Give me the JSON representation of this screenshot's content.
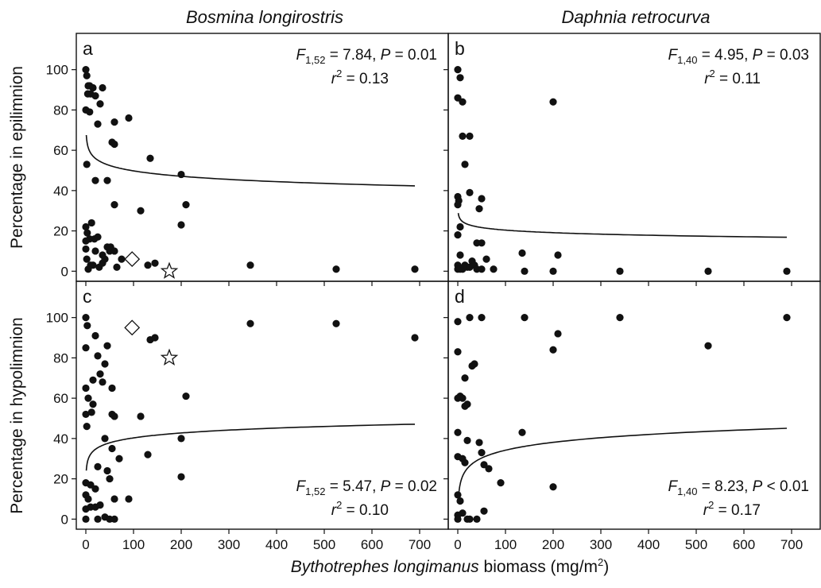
{
  "figure": {
    "column_titles": [
      "Bosmina longirostris",
      "Daphnia retrocurva"
    ],
    "xlabel_italic": "Bythotrephes longimanus",
    "xlabel_rest": " biomass (mg/m",
    "xlabel_sup": "2",
    "xlabel_close": ")",
    "ylabels": [
      "Percentage in epilimnion",
      "Percentage in hypolimnion"
    ]
  },
  "chart_data": [
    {
      "type": "scatter",
      "panel_label": "a",
      "ylabel": "Percentage in epilimnion",
      "xlim": [
        -20,
        760
      ],
      "ylim": [
        -5,
        118
      ],
      "xticks": [
        0,
        100,
        200,
        300,
        400,
        500,
        600,
        700
      ],
      "yticks": [
        0,
        20,
        40,
        60,
        80,
        100
      ],
      "stats": {
        "F_sub": "1,52",
        "F": "7.84",
        "P_op": "=",
        "P": "0.01",
        "r2": "0.13"
      },
      "points": [
        [
          0,
          100
        ],
        [
          2,
          97
        ],
        [
          5,
          92
        ],
        [
          8,
          92
        ],
        [
          15,
          91
        ],
        [
          4,
          88
        ],
        [
          10,
          88
        ],
        [
          20,
          87
        ],
        [
          35,
          91
        ],
        [
          30,
          83
        ],
        [
          0,
          80
        ],
        [
          8,
          79
        ],
        [
          25,
          73
        ],
        [
          60,
          74
        ],
        [
          90,
          76
        ],
        [
          55,
          64
        ],
        [
          60,
          63
        ],
        [
          135,
          56
        ],
        [
          200,
          48
        ],
        [
          2,
          53
        ],
        [
          20,
          45
        ],
        [
          45,
          45
        ],
        [
          60,
          33
        ],
        [
          115,
          30
        ],
        [
          200,
          23
        ],
        [
          210,
          33
        ],
        [
          0,
          22
        ],
        [
          3,
          19
        ],
        [
          12,
          24
        ],
        [
          8,
          16
        ],
        [
          18,
          16
        ],
        [
          0,
          11
        ],
        [
          2,
          6
        ],
        [
          5,
          1
        ],
        [
          10,
          3
        ],
        [
          15,
          3
        ],
        [
          20,
          10
        ],
        [
          25,
          17
        ],
        [
          28,
          2
        ],
        [
          35,
          4
        ],
        [
          35,
          8
        ],
        [
          40,
          6
        ],
        [
          45,
          12
        ],
        [
          50,
          10
        ],
        [
          52,
          12
        ],
        [
          60,
          10
        ],
        [
          65,
          2
        ],
        [
          75,
          6
        ],
        [
          130,
          3
        ],
        [
          145,
          4
        ],
        [
          0,
          15
        ],
        [
          345,
          3
        ],
        [
          525,
          1
        ],
        [
          690,
          1
        ]
      ],
      "highlights": [
        {
          "shape": "diamond",
          "x": 97,
          "y": 6
        },
        {
          "shape": "star",
          "x": 175,
          "y": 0
        }
      ],
      "fit": {
        "a": 67.54,
        "b": -8.88
      }
    },
    {
      "type": "scatter",
      "panel_label": "b",
      "xlim": [
        -20,
        760
      ],
      "ylim": [
        -5,
        118
      ],
      "xticks": [
        0,
        100,
        200,
        300,
        400,
        500,
        600,
        700
      ],
      "yticks": [
        0,
        20,
        40,
        60,
        80,
        100
      ],
      "stats": {
        "F_sub": "1,40",
        "F": "4.95",
        "P_op": "=",
        "P": "0.03",
        "r2": "0.11"
      },
      "points": [
        [
          0,
          100
        ],
        [
          5,
          96
        ],
        [
          0,
          86
        ],
        [
          10,
          84
        ],
        [
          200,
          84
        ],
        [
          10,
          67
        ],
        [
          25,
          67
        ],
        [
          15,
          53
        ],
        [
          25,
          39
        ],
        [
          50,
          36
        ],
        [
          0,
          37
        ],
        [
          2,
          35
        ],
        [
          0,
          33
        ],
        [
          5,
          22
        ],
        [
          0,
          18
        ],
        [
          45,
          31
        ],
        [
          40,
          14
        ],
        [
          50,
          14
        ],
        [
          5,
          8
        ],
        [
          0,
          3
        ],
        [
          0,
          1
        ],
        [
          5,
          1
        ],
        [
          10,
          1
        ],
        [
          15,
          3
        ],
        [
          20,
          2
        ],
        [
          25,
          2
        ],
        [
          30,
          5
        ],
        [
          35,
          3
        ],
        [
          40,
          1
        ],
        [
          50,
          1
        ],
        [
          60,
          6
        ],
        [
          75,
          1
        ],
        [
          135,
          9
        ],
        [
          210,
          8
        ],
        [
          140,
          0
        ],
        [
          200,
          0
        ],
        [
          340,
          0
        ],
        [
          525,
          0
        ],
        [
          690,
          0
        ]
      ],
      "highlights": [],
      "fit": {
        "a": 28.83,
        "b": -4.22
      }
    },
    {
      "type": "scatter",
      "panel_label": "c",
      "ylabel": "Percentage in hypolimnion",
      "xlim": [
        -20,
        760
      ],
      "ylim": [
        -5,
        118
      ],
      "xticks": [
        0,
        100,
        200,
        300,
        400,
        500,
        600,
        700
      ],
      "yticks": [
        0,
        20,
        40,
        60,
        80,
        100
      ],
      "stats": {
        "F_sub": "1,52",
        "F": "5.47",
        "P_op": "=",
        "P": "0.02",
        "r2": "0.10"
      },
      "points": [
        [
          0,
          100
        ],
        [
          3,
          96
        ],
        [
          20,
          91
        ],
        [
          0,
          85
        ],
        [
          45,
          86
        ],
        [
          25,
          81
        ],
        [
          40,
          77
        ],
        [
          30,
          72
        ],
        [
          35,
          68
        ],
        [
          55,
          65
        ],
        [
          15,
          69
        ],
        [
          0,
          65
        ],
        [
          5,
          60
        ],
        [
          15,
          57
        ],
        [
          0,
          52
        ],
        [
          12,
          53
        ],
        [
          55,
          52
        ],
        [
          60,
          51
        ],
        [
          115,
          51
        ],
        [
          210,
          61
        ],
        [
          40,
          40
        ],
        [
          55,
          35
        ],
        [
          70,
          30
        ],
        [
          130,
          32
        ],
        [
          200,
          40
        ],
        [
          2,
          46
        ],
        [
          25,
          26
        ],
        [
          45,
          24
        ],
        [
          50,
          20
        ],
        [
          60,
          10
        ],
        [
          200,
          21
        ],
        [
          0,
          18
        ],
        [
          10,
          17
        ],
        [
          20,
          15
        ],
        [
          0,
          12
        ],
        [
          5,
          10
        ],
        [
          0,
          5
        ],
        [
          10,
          6
        ],
        [
          20,
          6
        ],
        [
          30,
          7
        ],
        [
          40,
          1
        ],
        [
          50,
          0
        ],
        [
          60,
          0
        ],
        [
          0,
          0
        ],
        [
          25,
          0
        ],
        [
          90,
          10
        ],
        [
          135,
          89
        ],
        [
          145,
          90
        ],
        [
          345,
          97
        ],
        [
          525,
          97
        ],
        [
          690,
          90
        ]
      ],
      "highlights": [
        {
          "shape": "diamond",
          "x": 97,
          "y": 95
        },
        {
          "shape": "star",
          "x": 175,
          "y": 80
        }
      ],
      "fit": {
        "a": 24.1,
        "b": 8.1
      }
    },
    {
      "type": "scatter",
      "panel_label": "d",
      "xlim": [
        -20,
        760
      ],
      "ylim": [
        -5,
        118
      ],
      "xticks": [
        0,
        100,
        200,
        300,
        400,
        500,
        600,
        700
      ],
      "yticks": [
        0,
        20,
        40,
        60,
        80,
        100
      ],
      "stats": {
        "F_sub": "1,40",
        "F": "8.23",
        "P_op": "<",
        "P": "0.01",
        "r2": "0.17"
      },
      "points": [
        [
          0,
          98
        ],
        [
          25,
          100
        ],
        [
          50,
          100
        ],
        [
          140,
          100
        ],
        [
          340,
          100
        ],
        [
          690,
          100
        ],
        [
          200,
          84
        ],
        [
          210,
          92
        ],
        [
          0,
          83
        ],
        [
          525,
          86
        ],
        [
          35,
          77
        ],
        [
          30,
          76
        ],
        [
          15,
          70
        ],
        [
          0,
          60
        ],
        [
          5,
          61
        ],
        [
          10,
          60
        ],
        [
          20,
          57
        ],
        [
          15,
          56
        ],
        [
          0,
          43
        ],
        [
          135,
          43
        ],
        [
          20,
          39
        ],
        [
          45,
          38
        ],
        [
          50,
          33
        ],
        [
          55,
          27
        ],
        [
          65,
          25
        ],
        [
          0,
          31
        ],
        [
          10,
          30
        ],
        [
          15,
          28
        ],
        [
          90,
          18
        ],
        [
          200,
          16
        ],
        [
          0,
          12
        ],
        [
          5,
          9
        ],
        [
          10,
          3
        ],
        [
          20,
          0
        ],
        [
          0,
          2
        ],
        [
          25,
          0
        ],
        [
          40,
          0
        ],
        [
          55,
          4
        ],
        [
          0,
          0
        ]
      ],
      "highlights": [],
      "fit": {
        "a": 8.3,
        "b": 12.95
      }
    }
  ]
}
